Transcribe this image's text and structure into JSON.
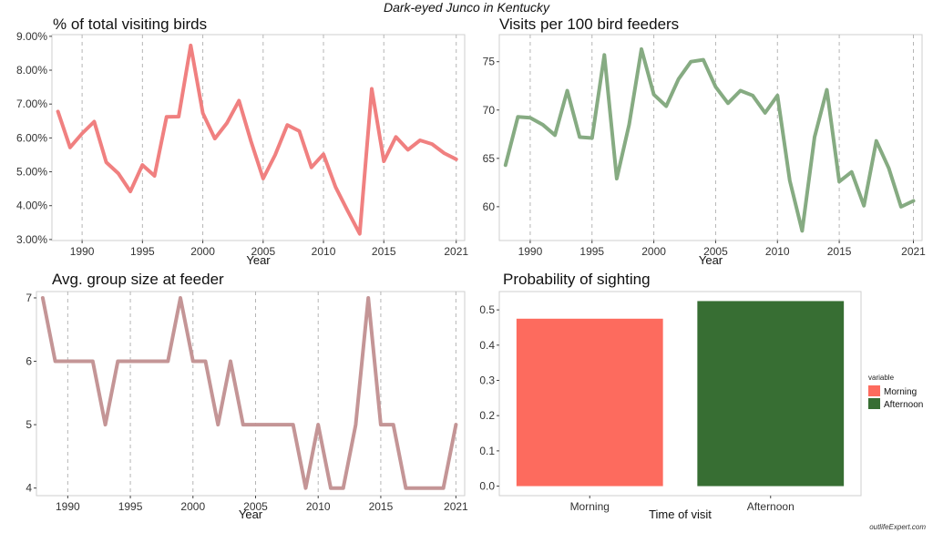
{
  "title": "Dark-eyed Junco in Kentucky",
  "watermark": "outlifeExpert.com",
  "chart_data": [
    {
      "type": "line",
      "title": "% of total visiting birds",
      "xlabel": "Year",
      "ylabel": "",
      "color": "#f08080",
      "x": [
        1988,
        1989,
        1990,
        1991,
        1992,
        1993,
        1994,
        1995,
        1996,
        1997,
        1998,
        1999,
        2000,
        2001,
        2002,
        2003,
        2004,
        2005,
        2006,
        2007,
        2008,
        2009,
        2010,
        2011,
        2012,
        2013,
        2014,
        2015,
        2016,
        2017,
        2018,
        2019,
        2020,
        2021
      ],
      "values": [
        6.78,
        5.72,
        6.13,
        6.48,
        5.28,
        4.95,
        4.42,
        5.2,
        4.88,
        6.62,
        6.63,
        8.73,
        6.73,
        5.98,
        6.44,
        7.1,
        5.89,
        4.8,
        5.5,
        6.38,
        6.2,
        5.13,
        5.52,
        4.55,
        3.85,
        3.17,
        7.45,
        5.31,
        6.03,
        5.65,
        5.93,
        5.82,
        5.55,
        5.37
      ],
      "xlim": [
        1987.5,
        2021.7
      ],
      "ylim": [
        2.97,
        9.05
      ],
      "xticks": [
        1990,
        1995,
        2000,
        2005,
        2010,
        2015,
        2021
      ],
      "yticks": [
        3,
        4,
        5,
        6,
        7,
        8,
        9
      ],
      "ytick_labels": [
        "3.00%",
        "4.00%",
        "5.00%",
        "6.00%",
        "7.00%",
        "8.00%",
        "9.00%"
      ],
      "grid": "vertical dashed"
    },
    {
      "type": "line",
      "title": "Visits per 100 bird feeders",
      "xlabel": "Year",
      "ylabel": "",
      "color": "#86ab82",
      "x": [
        1988,
        1989,
        1990,
        1991,
        1992,
        1993,
        1994,
        1995,
        1996,
        1997,
        1998,
        1999,
        2000,
        2001,
        2002,
        2003,
        2004,
        2005,
        2006,
        2007,
        2008,
        2009,
        2010,
        2011,
        2012,
        2013,
        2014,
        2015,
        2016,
        2017,
        2018,
        2019,
        2020,
        2021
      ],
      "values": [
        64.3,
        69.3,
        69.2,
        68.5,
        67.4,
        72.0,
        67.2,
        67.1,
        75.7,
        62.9,
        68.5,
        76.3,
        71.6,
        70.4,
        73.2,
        75.0,
        75.2,
        72.4,
        70.7,
        72.0,
        71.5,
        69.7,
        71.5,
        62.7,
        57.5,
        67.2,
        72.1,
        62.6,
        63.6,
        60.1,
        66.8,
        64.0,
        60.0,
        60.6
      ],
      "xlim": [
        1987.5,
        2021.7
      ],
      "ylim": [
        56.5,
        77.8
      ],
      "xticks": [
        1990,
        1995,
        2000,
        2005,
        2010,
        2015,
        2021
      ],
      "yticks": [
        60,
        65,
        70,
        75
      ],
      "ytick_labels": [
        "60",
        "65",
        "70",
        "75"
      ],
      "grid": "vertical dashed"
    },
    {
      "type": "line",
      "title": "Avg. group size at feeder",
      "xlabel": "Year",
      "ylabel": "",
      "color": "#c49596",
      "x": [
        1988,
        1989,
        1990,
        1991,
        1992,
        1993,
        1994,
        1995,
        1996,
        1997,
        1998,
        1999,
        2000,
        2001,
        2002,
        2003,
        2004,
        2005,
        2006,
        2007,
        2008,
        2009,
        2010,
        2011,
        2012,
        2013,
        2014,
        2015,
        2016,
        2017,
        2018,
        2019,
        2020,
        2021
      ],
      "values": [
        7,
        6,
        6,
        6,
        6,
        5,
        6,
        6,
        6,
        6,
        6,
        7,
        6,
        6,
        5,
        6,
        5,
        5,
        5,
        5,
        5,
        4,
        5,
        4,
        4,
        5,
        7,
        5,
        5,
        4,
        4,
        4,
        4,
        5
      ],
      "xlim": [
        1987.5,
        2021.7
      ],
      "ylim": [
        3.88,
        7.1
      ],
      "xticks": [
        1990,
        1995,
        2000,
        2005,
        2010,
        2015,
        2021
      ],
      "yticks": [
        4,
        5,
        6,
        7
      ],
      "ytick_labels": [
        "4",
        "5",
        "6",
        "7"
      ],
      "grid": "vertical dashed"
    },
    {
      "type": "bar",
      "title": "Probability of sighting",
      "xlabel": "Time of visit",
      "ylabel": "",
      "categories": [
        "Morning",
        "Afternoon"
      ],
      "values": [
        0.475,
        0.525
      ],
      "colors": [
        "#fd6b5e",
        "#376e33"
      ],
      "ylim": [
        -0.027,
        0.552
      ],
      "yticks": [
        0.0,
        0.1,
        0.2,
        0.3,
        0.4,
        0.5
      ],
      "ytick_labels": [
        "0.0",
        "0.1",
        "0.2",
        "0.3",
        "0.4",
        "0.5"
      ],
      "legend": {
        "title": "variable",
        "entries": [
          "Morning",
          "Afternoon"
        ],
        "position": "right"
      }
    }
  ]
}
